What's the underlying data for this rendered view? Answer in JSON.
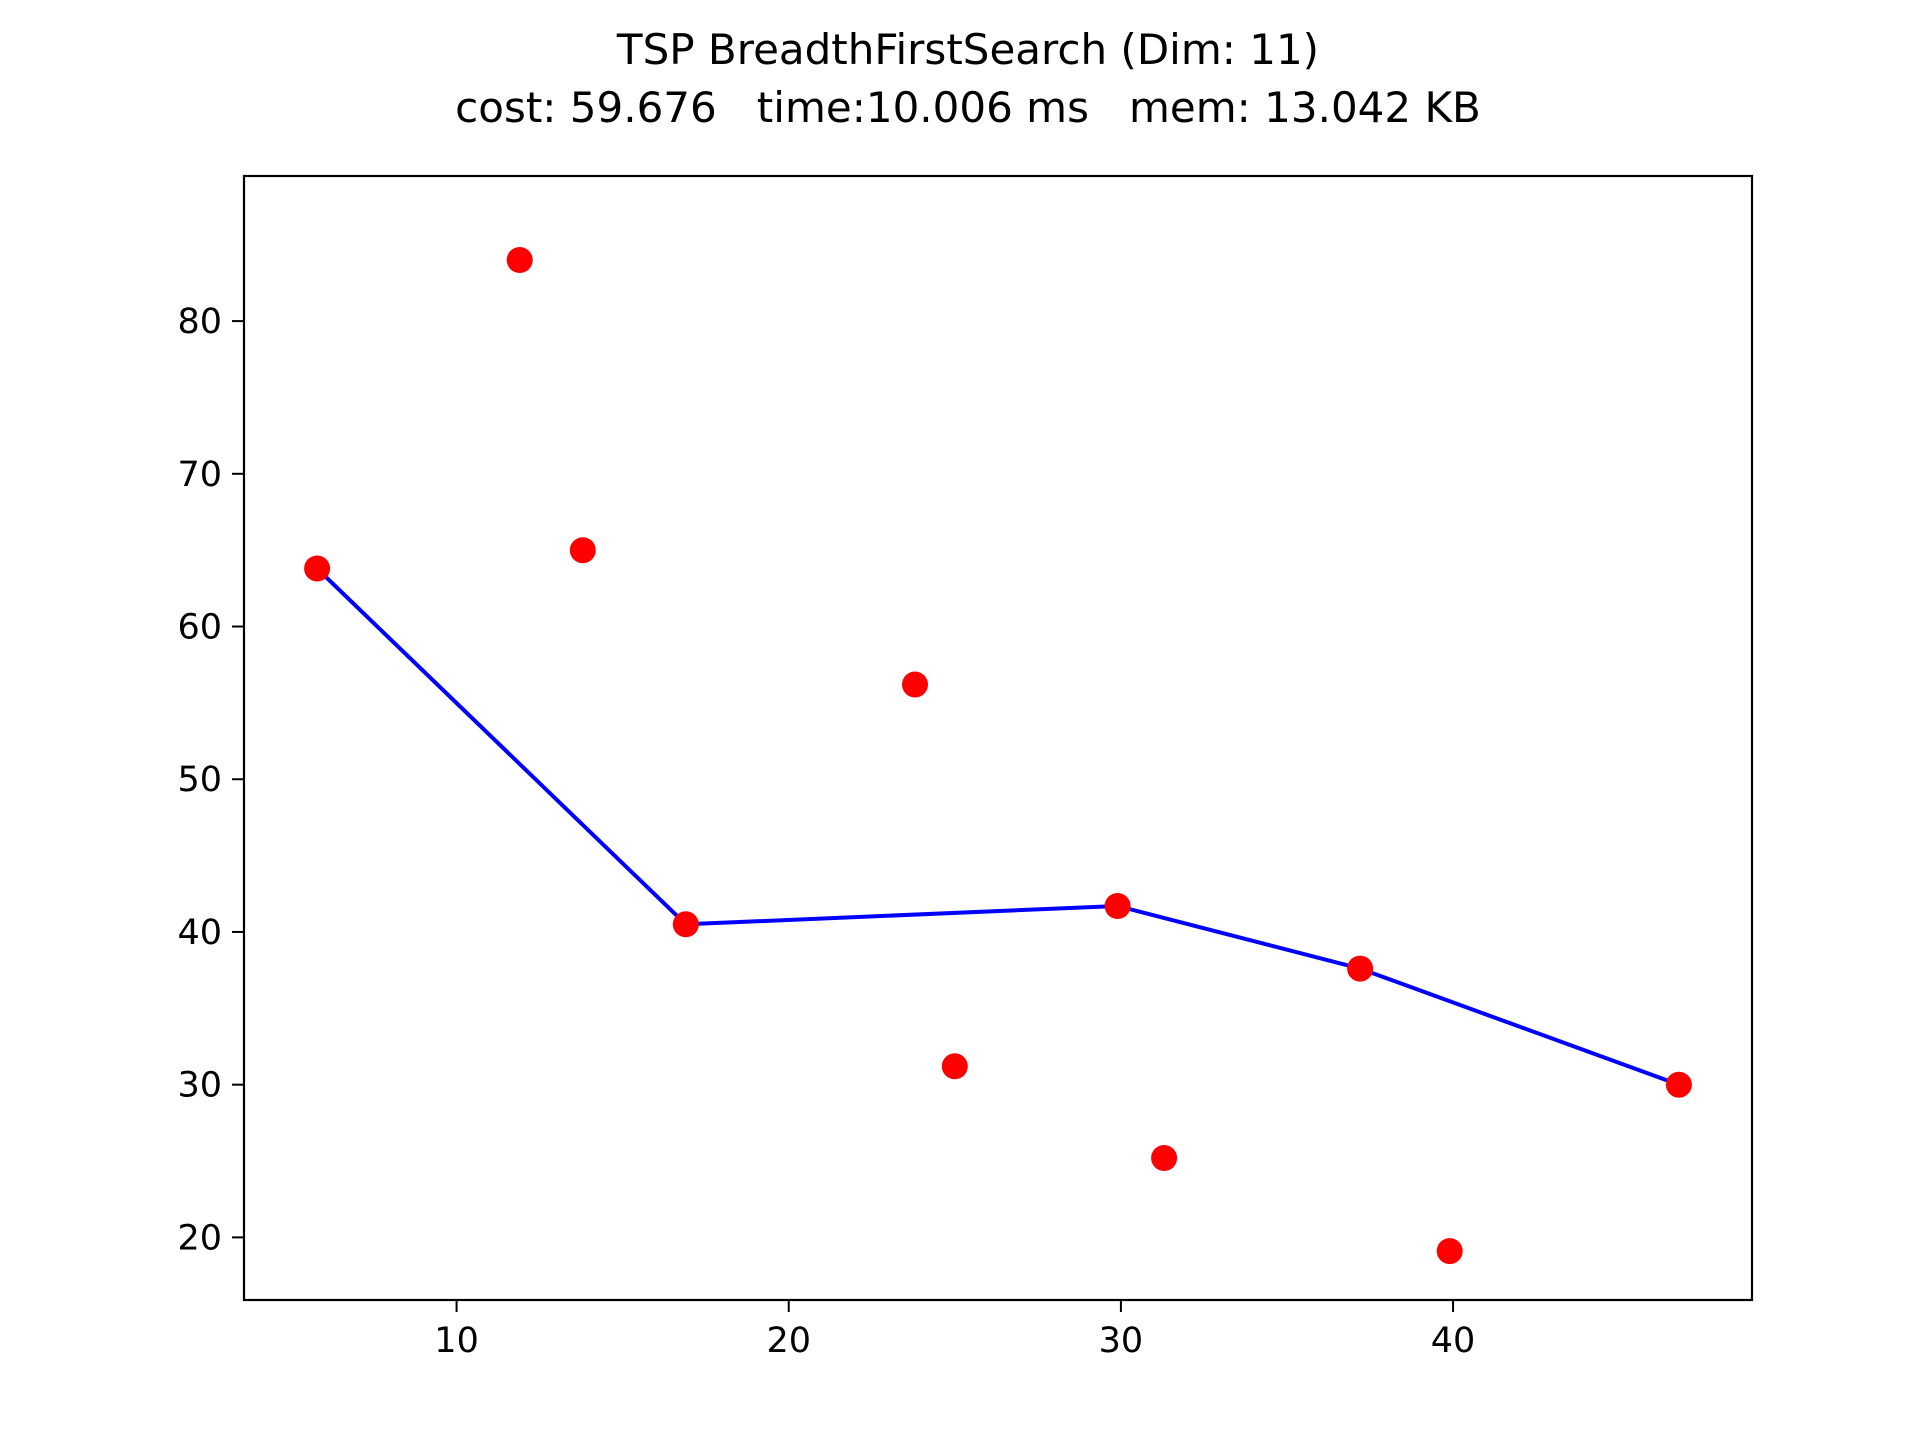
{
  "chart_data": {
    "type": "scatter",
    "title_line1": "TSP BreadthFirstSearch (Dim: 11)",
    "title_line2": "cost: 59.676   time:10.006 ms   mem: 13.042 KB",
    "xlim": [
      3.6,
      49.0
    ],
    "ylim": [
      15.9,
      89.5
    ],
    "x_ticks": [
      10,
      20,
      30,
      40
    ],
    "x_tick_labels": [
      "10",
      "20",
      "30",
      "40"
    ],
    "y_ticks": [
      20,
      30,
      40,
      50,
      60,
      70,
      80
    ],
    "y_tick_labels": [
      "20",
      "30",
      "40",
      "50",
      "60",
      "70",
      "80"
    ],
    "points": {
      "color": "#ff0000",
      "x": [
        5.8,
        11.9,
        13.8,
        16.9,
        23.8,
        25.0,
        29.9,
        31.3,
        37.2,
        39.9,
        46.8
      ],
      "y": [
        63.8,
        84.0,
        65.0,
        40.5,
        56.2,
        31.2,
        41.7,
        25.2,
        37.6,
        19.1,
        30.0
      ]
    },
    "path": {
      "color": "#0000ff",
      "x": [
        5.8,
        16.9,
        29.9,
        37.2,
        46.8
      ],
      "y": [
        63.8,
        40.5,
        41.7,
        37.6,
        30.0
      ]
    }
  }
}
